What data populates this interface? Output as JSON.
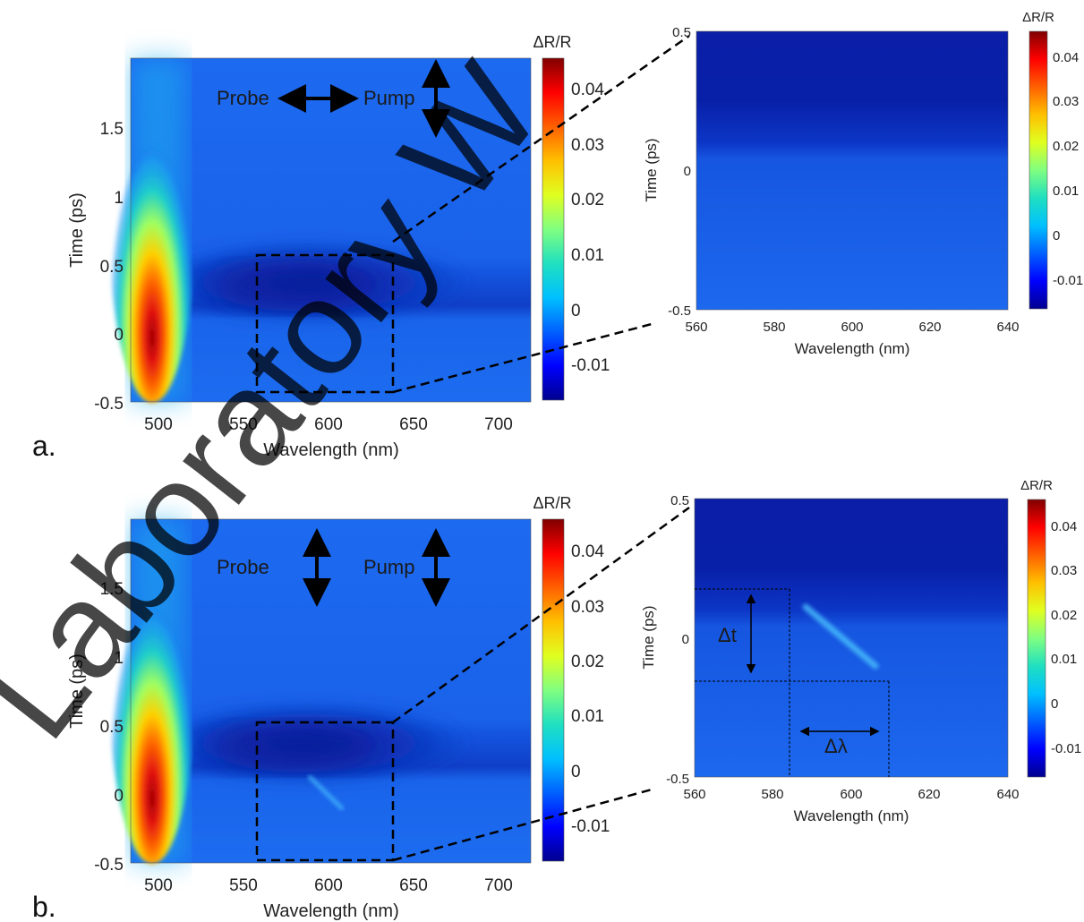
{
  "watermark": "Laboratory W",
  "colors": {
    "colormap": [
      "#00008f",
      "#0000ff",
      "#0060ff",
      "#00c0ff",
      "#20e0c0",
      "#80ff80",
      "#e0ff20",
      "#ffc000",
      "#ff6000",
      "#ff0000",
      "#800000"
    ],
    "background": "#1760e8"
  },
  "chart_data": [
    {
      "id": "a-main",
      "panel_label": "a.",
      "type": "heatmap",
      "xlabel": "Wavelength (nm)",
      "ylabel": "Time (ps)",
      "colorbar_label": "ΔR/R",
      "xlim": [
        483,
        718
      ],
      "ylim": [
        -0.5,
        2.0
      ],
      "xticks": [
        500,
        550,
        600,
        650,
        700
      ],
      "yticks": [
        -0.5,
        0,
        0.5,
        1,
        1.5
      ],
      "ytick_labels": [
        "-0.5",
        "0",
        "0.5",
        "1",
        "1.5"
      ],
      "clim": [
        -0.016,
        0.046
      ],
      "cticks": [
        -0.01,
        0,
        0.01,
        0.02,
        0.03,
        0.04
      ],
      "ctick_labels": [
        "-0.01",
        "0",
        "0.01",
        "0.02",
        "0.03",
        "0.04"
      ],
      "annotations": [
        {
          "text": "Probe",
          "x": 541,
          "y": 1.7
        },
        {
          "text": "Pump",
          "x": 649,
          "y": 1.7
        }
      ],
      "features": [
        {
          "kind": "positive peak",
          "wavelength_nm": 496,
          "time_ps": 0.3,
          "value": 0.046
        },
        {
          "kind": "negative band",
          "wavelength_nm": 590,
          "time_ps": 0.3,
          "value": -0.014
        }
      ],
      "zoom_box": {
        "xlim": [
          560,
          640
        ],
        "ylim": [
          -0.5,
          0.5
        ]
      }
    },
    {
      "id": "a-zoom",
      "type": "heatmap",
      "xlabel": "Wavelength (nm)",
      "ylabel": "Time (ps)",
      "colorbar_label": "ΔR/R",
      "xlim": [
        560,
        640
      ],
      "ylim": [
        -0.5,
        0.5
      ],
      "xticks": [
        560,
        580,
        600,
        620,
        640
      ],
      "yticks": [
        -0.5,
        0,
        0.5
      ],
      "ytick_labels": [
        "-0.5",
        "0",
        "0.5"
      ],
      "clim": [
        -0.016,
        0.046
      ],
      "cticks": [
        -0.01,
        0,
        0.01,
        0.02,
        0.03,
        0.04
      ],
      "ctick_labels": [
        "-0.01",
        "0",
        "0.01",
        "0.02",
        "0.03",
        "0.04"
      ]
    },
    {
      "id": "b-main",
      "panel_label": "b.",
      "type": "heatmap",
      "xlabel": "Wavelength (nm)",
      "ylabel": "Time (ps)",
      "colorbar_label": "ΔR/R",
      "xlim": [
        483,
        718
      ],
      "ylim": [
        -0.5,
        2.0
      ],
      "xticks": [
        500,
        550,
        600,
        650,
        700
      ],
      "yticks": [
        -0.5,
        0,
        0.5,
        1,
        1.5
      ],
      "ytick_labels": [
        "-0.5",
        "0",
        "0.5",
        "1",
        "1.5"
      ],
      "clim": [
        -0.016,
        0.046
      ],
      "cticks": [
        -0.01,
        0,
        0.01,
        0.02,
        0.03,
        0.04
      ],
      "ctick_labels": [
        "-0.01",
        "0",
        "0.01",
        "0.02",
        "0.03",
        "0.04"
      ],
      "annotations": [
        {
          "text": "Probe",
          "x": 541,
          "y": 1.67
        },
        {
          "text": "Pump",
          "x": 649,
          "y": 1.67
        }
      ],
      "features": [
        {
          "kind": "positive peak",
          "wavelength_nm": 496,
          "time_ps": 0.3,
          "value": 0.046
        },
        {
          "kind": "negative band",
          "wavelength_nm": 590,
          "time_ps": 0.3,
          "value": -0.014
        },
        {
          "kind": "diagonal streak",
          "from": [
            589,
            0.1
          ],
          "to": [
            599,
            -0.12
          ]
        }
      ],
      "zoom_box": {
        "xlim": [
          560,
          640
        ],
        "ylim": [
          -0.5,
          0.5
        ]
      }
    },
    {
      "id": "b-zoom",
      "type": "heatmap",
      "xlabel": "Wavelength (nm)",
      "ylabel": "Time (ps)",
      "colorbar_label": "ΔR/R",
      "xlim": [
        560,
        640
      ],
      "ylim": [
        -0.5,
        0.5
      ],
      "xticks": [
        560,
        580,
        600,
        620,
        640
      ],
      "yticks": [
        -0.5,
        0,
        0.5
      ],
      "ytick_labels": [
        "-0.5",
        "0",
        "0.5"
      ],
      "clim": [
        -0.016,
        0.046
      ],
      "cticks": [
        -0.01,
        0,
        0.01,
        0.02,
        0.03,
        0.04
      ],
      "ctick_labels": [
        "-0.01",
        "0",
        "0.01",
        "0.02",
        "0.03",
        "0.04"
      ],
      "annotations": [
        {
          "text": "Δt",
          "x": 569,
          "y": 0.0
        },
        {
          "text": "Δλ",
          "x": 597,
          "y": -0.34
        }
      ],
      "features": [
        {
          "kind": "diagonal streak",
          "from": [
            588,
            0.18
          ],
          "to": [
            604,
            -0.08
          ]
        }
      ],
      "guides": {
        "t1": 0.18,
        "t2": -0.15,
        "lambda1": 584,
        "lambda2": 610
      }
    }
  ]
}
